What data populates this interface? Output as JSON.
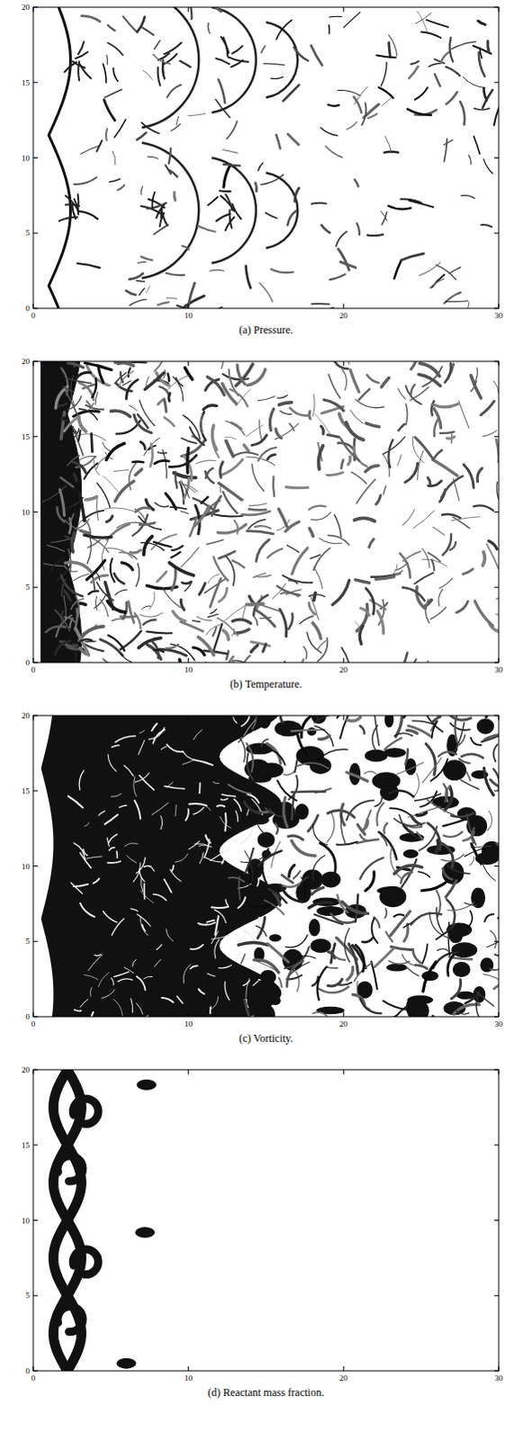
{
  "chart_data": [
    {
      "type": "field",
      "title": "(a) Pressure.",
      "xlim": [
        0,
        30
      ],
      "ylim": [
        0,
        20
      ],
      "xticks": [
        0,
        10,
        20,
        30
      ],
      "yticks": [
        0,
        5,
        10,
        15,
        20
      ]
    },
    {
      "type": "field",
      "title": "(b) Temperature.",
      "xlim": [
        0,
        30
      ],
      "ylim": [
        0,
        20
      ],
      "xticks": [
        0,
        10,
        20,
        30
      ],
      "yticks": [
        0,
        5,
        10,
        15,
        20
      ]
    },
    {
      "type": "field",
      "title": "(c) Vorticity.",
      "xlim": [
        0,
        30
      ],
      "ylim": [
        0,
        20
      ],
      "xticks": [
        0,
        10,
        20,
        30
      ],
      "yticks": [
        0,
        5,
        10,
        15,
        20
      ]
    },
    {
      "type": "field",
      "title": "(d) Reactant mass fraction.",
      "xlim": [
        0,
        30
      ],
      "ylim": [
        0,
        20
      ],
      "xticks": [
        0,
        10,
        20,
        30
      ],
      "yticks": [
        0,
        5,
        10,
        15,
        20
      ]
    }
  ]
}
